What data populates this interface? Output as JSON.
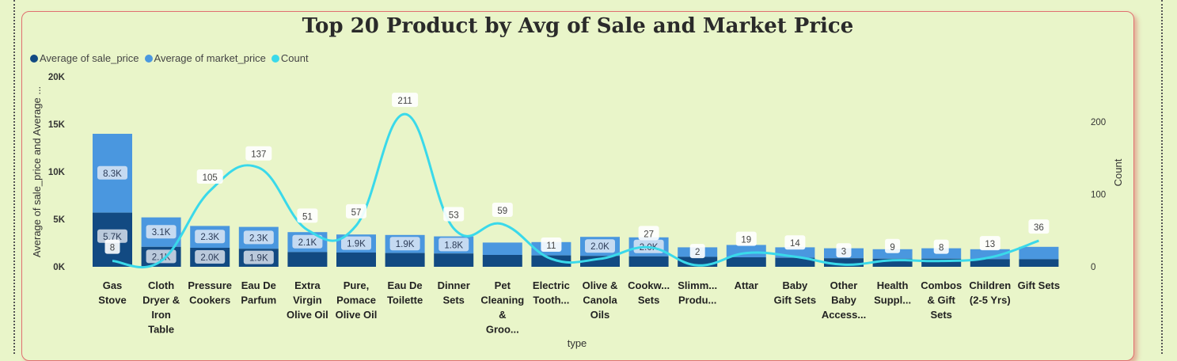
{
  "chart_data": {
    "type": "bar",
    "title": "Top 20 Product by Avg of Sale and Market Price",
    "xlabel": "type",
    "ylabel": "Average of sale_price and Average ...",
    "y2label": "Count",
    "ylim": [
      0,
      20000
    ],
    "y2lim": [
      0,
      220
    ],
    "yticks": [
      "0K",
      "5K",
      "10K",
      "15K",
      "20K"
    ],
    "y2ticks": [
      "0",
      "100",
      "200"
    ],
    "legend_position": "top-left",
    "categories": [
      [
        "Gas",
        "Stove"
      ],
      [
        "Cloth",
        "Dryer &",
        "Iron",
        "Table"
      ],
      [
        "Pressure",
        "Cookers"
      ],
      [
        "Eau De",
        "Parfum"
      ],
      [
        "Extra",
        "Virgin",
        "Olive Oil"
      ],
      [
        "Pure,",
        "Pomace",
        "Olive Oil"
      ],
      [
        "Eau De",
        "Toilette"
      ],
      [
        "Dinner",
        "Sets"
      ],
      [
        "Pet",
        "Cleaning",
        "&",
        "Groo..."
      ],
      [
        "Electric",
        "Tooth..."
      ],
      [
        "Olive &",
        "Canola",
        "Oils"
      ],
      [
        "Cookw...",
        "Sets"
      ],
      [
        "Slimm...",
        "Produ..."
      ],
      [
        "Attar"
      ],
      [
        "Baby",
        "Gift Sets"
      ],
      [
        "Other",
        "Baby",
        "Access..."
      ],
      [
        "Health",
        "Suppl..."
      ],
      [
        "Combos",
        "& Gift",
        "Sets"
      ],
      [
        "Children",
        "(2-5 Yrs)"
      ],
      [
        "Gift Sets"
      ]
    ],
    "series": [
      {
        "name": "Average of sale_price",
        "color": "#124a82",
        "values": [
          5700,
          2100,
          2000,
          1900,
          1550,
          1500,
          1450,
          1400,
          1250,
          1200,
          1150,
          1100,
          1050,
          1000,
          950,
          900,
          850,
          850,
          800,
          800
        ],
        "labels": [
          "5.7K",
          "2.1K",
          "2.0K",
          "1.9K",
          "",
          "",
          "",
          "",
          "",
          "",
          "",
          "",
          "",
          "",
          "",
          "",
          "",
          "",
          "",
          ""
        ]
      },
      {
        "name": "Average of market_price",
        "color": "#4a97df",
        "values": [
          8300,
          3100,
          2300,
          2300,
          2100,
          1900,
          1900,
          1800,
          1300,
          1400,
          2000,
          2000,
          1000,
          1300,
          1100,
          1050,
          1000,
          1100,
          1050,
          1300
        ],
        "labels": [
          "8.3K",
          "3.1K",
          "2.3K",
          "2.3K",
          "2.1K",
          "1.9K",
          "1.9K",
          "1.8K",
          "",
          "",
          "2.0K",
          "2.0K",
          "",
          "",
          "",
          "",
          "",
          "",
          "",
          ""
        ]
      },
      {
        "name": "Count",
        "color": "#3ad9ea",
        "axis": "right",
        "values": [
          8,
          8,
          105,
          137,
          51,
          57,
          211,
          53,
          59,
          11,
          11,
          27,
          2,
          19,
          14,
          3,
          9,
          8,
          13,
          36
        ],
        "labels": [
          "8",
          "",
          "105",
          "137",
          "51",
          "57",
          "211",
          "53",
          "59",
          "11",
          "",
          "27",
          "2",
          "19",
          "14",
          "3",
          "9",
          "8",
          "13",
          "36"
        ]
      }
    ]
  }
}
